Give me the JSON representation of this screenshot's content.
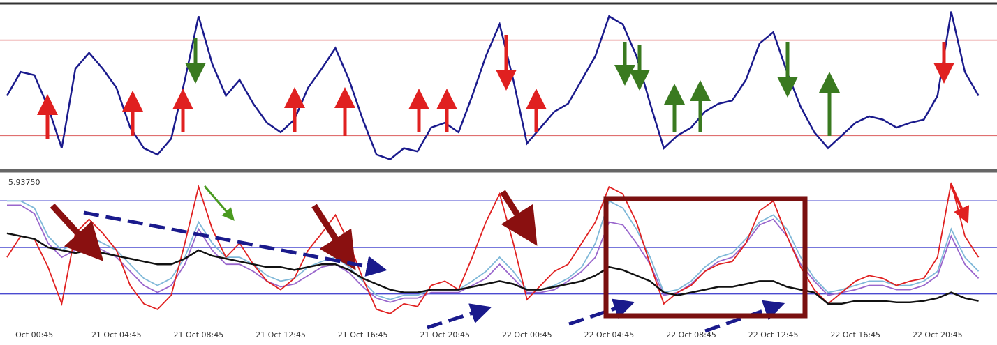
{
  "chart_data": [
    {
      "type": "line",
      "ylim": [
        0,
        100
      ],
      "levels": [
        80,
        20
      ],
      "level_color": "#e07070",
      "series": [
        {
          "color": "#1a1a8c",
          "values": [
            45,
            60,
            58,
            38,
            12,
            62,
            72,
            62,
            50,
            25,
            12,
            8,
            18,
            55,
            95,
            65,
            45,
            55,
            40,
            28,
            22,
            30,
            50,
            62,
            75,
            55,
            30,
            8,
            5,
            12,
            10,
            25,
            28,
            22,
            45,
            70,
            90,
            55,
            15,
            25,
            35,
            40,
            55,
            70,
            95,
            90,
            70,
            40,
            12,
            20,
            25,
            35,
            40,
            42,
            55,
            78,
            85,
            60,
            38,
            22,
            12,
            20,
            28,
            32,
            30,
            25,
            28,
            30,
            45,
            98,
            60,
            45
          ]
        }
      ]
    },
    {
      "type": "line",
      "ylim": [
        0,
        100
      ],
      "levels": [
        85,
        52,
        19
      ],
      "level_color": "#4a4ad0",
      "axis_label": "5.93750",
      "categories": [
        null,
        null,
        "Oct 00:45",
        null,
        null,
        null,
        null,
        null,
        "21 Oct 04:45",
        null,
        null,
        null,
        null,
        null,
        "21 Oct 08:45",
        null,
        null,
        null,
        null,
        null,
        "21 Oct 12:45",
        null,
        null,
        null,
        null,
        null,
        "21 Oct 16:45",
        null,
        null,
        null,
        null,
        null,
        "21 Oct 20:45",
        null,
        null,
        null,
        null,
        null,
        "22 Oct 00:45",
        null,
        null,
        null,
        null,
        null,
        "22 Oct 04:45",
        null,
        null,
        null,
        null,
        null,
        "22 Oct 08:45",
        null,
        null,
        null,
        null,
        null,
        "22 Oct 12:45",
        null,
        null,
        null,
        null,
        null,
        "22 Oct 16:45",
        null,
        null,
        null,
        null,
        null,
        "22 Oct 20:45",
        null,
        null,
        null
      ],
      "series": [
        {
          "color": "#7fb8d8",
          "values": [
            85,
            85,
            80,
            60,
            50,
            55,
            60,
            55,
            50,
            40,
            30,
            25,
            30,
            45,
            70,
            55,
            45,
            45,
            40,
            32,
            28,
            30,
            38,
            42,
            45,
            38,
            28,
            18,
            15,
            18,
            18,
            22,
            22,
            22,
            28,
            35,
            45,
            35,
            22,
            22,
            25,
            30,
            38,
            55,
            85,
            80,
            65,
            45,
            20,
            22,
            28,
            38,
            45,
            48,
            58,
            70,
            75,
            65,
            45,
            30,
            20,
            22,
            25,
            28,
            28,
            25,
            25,
            28,
            35,
            65,
            45,
            35
          ]
        },
        {
          "color": "#9966cc",
          "values": [
            82,
            82,
            76,
            55,
            45,
            50,
            55,
            50,
            45,
            35,
            25,
            20,
            25,
            40,
            65,
            50,
            40,
            40,
            35,
            28,
            24,
            26,
            32,
            38,
            40,
            34,
            24,
            16,
            13,
            16,
            16,
            20,
            20,
            20,
            25,
            30,
            40,
            30,
            20,
            20,
            22,
            28,
            35,
            45,
            70,
            68,
            55,
            40,
            18,
            20,
            26,
            35,
            42,
            45,
            55,
            68,
            72,
            60,
            40,
            28,
            18,
            20,
            22,
            25,
            25,
            22,
            22,
            25,
            32,
            60,
            40,
            30
          ]
        },
        {
          "color": "#e02020",
          "values": [
            45,
            60,
            58,
            38,
            12,
            62,
            72,
            62,
            50,
            25,
            12,
            8,
            18,
            55,
            95,
            65,
            45,
            55,
            40,
            28,
            22,
            30,
            50,
            62,
            75,
            55,
            30,
            8,
            5,
            12,
            10,
            25,
            28,
            22,
            45,
            70,
            90,
            55,
            15,
            25,
            35,
            40,
            55,
            70,
            95,
            90,
            70,
            40,
            12,
            20,
            25,
            35,
            40,
            42,
            55,
            78,
            85,
            60,
            38,
            22,
            12,
            20,
            28,
            32,
            30,
            25,
            28,
            30,
            45,
            98,
            60,
            45
          ]
        },
        {
          "color": "#111111",
          "values": [
            62,
            60,
            58,
            52,
            50,
            48,
            50,
            48,
            46,
            44,
            42,
            40,
            40,
            44,
            50,
            46,
            44,
            42,
            40,
            38,
            38,
            36,
            38,
            40,
            40,
            36,
            30,
            26,
            22,
            20,
            20,
            22,
            22,
            22,
            24,
            26,
            28,
            26,
            22,
            22,
            24,
            26,
            28,
            32,
            38,
            36,
            32,
            28,
            20,
            18,
            20,
            22,
            24,
            24,
            26,
            28,
            28,
            24,
            22,
            20,
            12,
            12,
            14,
            14,
            14,
            13,
            13,
            14,
            16,
            20,
            16,
            14
          ]
        }
      ]
    }
  ]
}
